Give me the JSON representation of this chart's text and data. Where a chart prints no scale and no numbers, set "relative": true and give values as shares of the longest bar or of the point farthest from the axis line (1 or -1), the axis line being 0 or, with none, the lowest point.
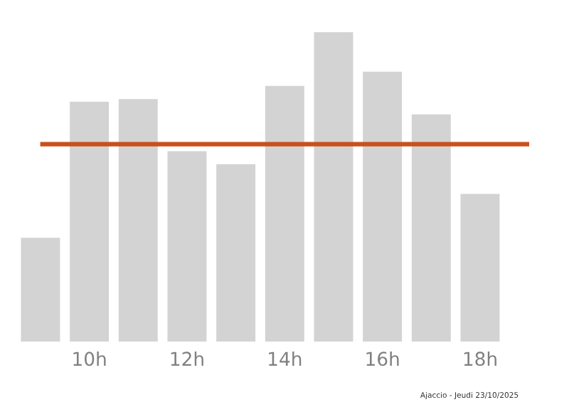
{
  "chart_data": {
    "type": "bar",
    "relative": true,
    "categories": [
      null,
      "10h",
      null,
      "12h",
      null,
      "14h",
      null,
      "16h",
      null,
      "18h",
      null
    ],
    "values": [
      0.335,
      0.775,
      0.784,
      0.615,
      0.573,
      0.826,
      1,
      0.872,
      0.734,
      0.477,
      null
    ],
    "color": "#d3d3d3",
    "ref_lines": [
      {
        "axis": "y",
        "value": 0.638,
        "color": "#c9501c",
        "line_style": "solid"
      }
    ],
    "annotations": [
      "Ajaccio - Jeudi 23/10/2025"
    ],
    "grid": false,
    "legend": false
  }
}
